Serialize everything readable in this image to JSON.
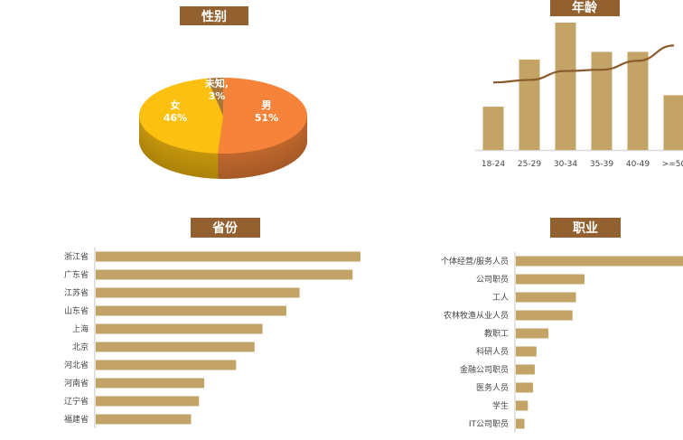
{
  "colors": {
    "title_bg": "#93602F",
    "bar": "#C4A466",
    "line": "#8A5A2B",
    "axis": "#D9D9D9"
  },
  "chart_data": [
    {
      "type": "pie",
      "title": "性别",
      "three_d": true,
      "slices": [
        {
          "label": "男",
          "value": 51,
          "display": "51%",
          "color": "#F5843A"
        },
        {
          "label": "女",
          "value": 46,
          "display": "46%",
          "color": "#FCC010"
        },
        {
          "label": "未知,",
          "value": 3,
          "display": "3%",
          "color": "#A8763A"
        }
      ]
    },
    {
      "type": "bar",
      "title": "年龄",
      "categories": [
        "18-24",
        "25-29",
        "30-34",
        "35-39",
        "40-49",
        ">=50"
      ],
      "series": [
        {
          "type": "bar",
          "values": [
            34,
            71,
            100,
            77,
            77,
            43
          ]
        },
        {
          "type": "line",
          "values": [
            53,
            55,
            62,
            63,
            70,
            82
          ]
        }
      ],
      "ylim": [
        0,
        100
      ],
      "grid": false
    },
    {
      "type": "bar",
      "orientation": "horizontal",
      "title": "省份",
      "categories": [
        "浙江省",
        "广东省",
        "江苏省",
        "山东省",
        "上海",
        "北京",
        "河北省",
        "河南省",
        "辽宁省",
        "福建省"
      ],
      "values": [
        100,
        97,
        77,
        72,
        63,
        60,
        53,
        41,
        39,
        36
      ],
      "xlim": [
        0,
        100
      ]
    },
    {
      "type": "bar",
      "orientation": "horizontal",
      "title": "职业",
      "categories": [
        "个体经营/服务人员",
        "公司职员",
        "工人",
        "农林牧渔从业人员",
        "教职工",
        "科研人员",
        "金融公司职员",
        "医务人员",
        "学生",
        "IT公司职员"
      ],
      "values": [
        100,
        40,
        35,
        33,
        19,
        12,
        11,
        10,
        7,
        5
      ],
      "xlim": [
        0,
        100
      ]
    }
  ]
}
